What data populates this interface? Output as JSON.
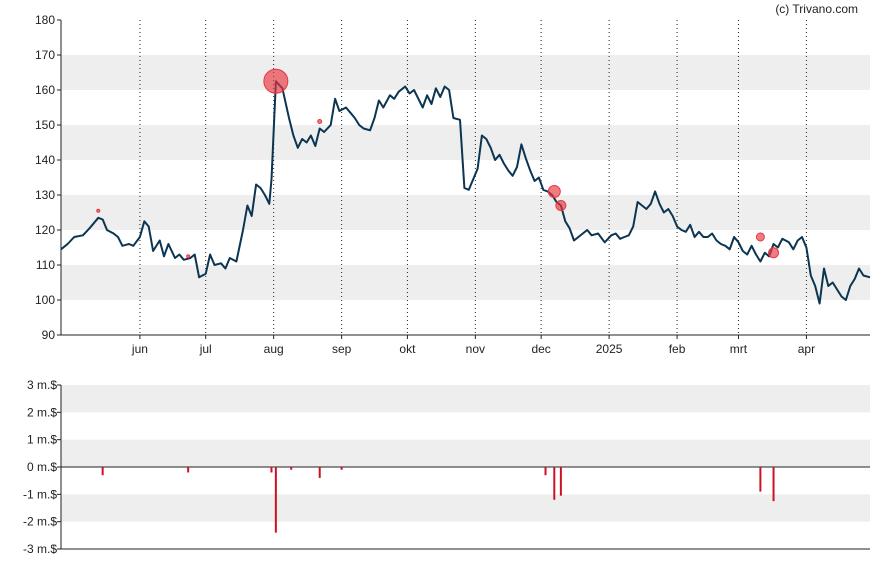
{
  "credit": "(c) Trivano.com",
  "colors": {
    "price_line": "#0b3551",
    "insider_marker": "#e8363f",
    "insider_bar": "#cc1122",
    "band": "#eeeeee",
    "axis": "#222222",
    "month_grid": "#222222"
  },
  "chart_data": [
    {
      "type": "line",
      "ylim": [
        90,
        180
      ],
      "y_ticks": [
        90,
        100,
        110,
        120,
        130,
        140,
        150,
        160,
        170,
        180
      ],
      "y_tick_labels": [
        "90",
        "100",
        "110",
        "120",
        "130",
        "140",
        "150",
        "160",
        "170",
        "180"
      ],
      "x_range": [
        "2024-04-26",
        "2025-04-30"
      ],
      "x_ticks": [
        {
          "label": "jun",
          "date": "2024-06-01"
        },
        {
          "label": "jul",
          "date": "2024-07-01"
        },
        {
          "label": "aug",
          "date": "2024-08-01"
        },
        {
          "label": "sep",
          "date": "2024-09-01"
        },
        {
          "label": "okt",
          "date": "2024-10-01"
        },
        {
          "label": "nov",
          "date": "2024-11-01"
        },
        {
          "label": "dec",
          "date": "2024-12-01"
        },
        {
          "label": "2025",
          "date": "2025-01-01"
        },
        {
          "label": "feb",
          "date": "2025-02-01"
        },
        {
          "label": "mrt",
          "date": "2025-03-01"
        },
        {
          "label": "apr",
          "date": "2025-04-01"
        }
      ],
      "grid": "alternating horizontal bands, dotted vertical month lines",
      "series": [
        {
          "points": [
            [
              "2024-04-26",
              114.5
            ],
            [
              "2024-04-29",
              116.0
            ],
            [
              "2024-05-02",
              118.0
            ],
            [
              "2024-05-06",
              118.5
            ],
            [
              "2024-05-09",
              120.5
            ],
            [
              "2024-05-13",
              123.5
            ],
            [
              "2024-05-15",
              123.0
            ],
            [
              "2024-05-17",
              120.0
            ],
            [
              "2024-05-20",
              119.0
            ],
            [
              "2024-05-22",
              118.0
            ],
            [
              "2024-05-24",
              115.5
            ],
            [
              "2024-05-27",
              116.0
            ],
            [
              "2024-05-29",
              115.5
            ],
            [
              "2024-06-01",
              118.0
            ],
            [
              "2024-06-03",
              122.5
            ],
            [
              "2024-06-05",
              121.0
            ],
            [
              "2024-06-07",
              114.0
            ],
            [
              "2024-06-10",
              117.0
            ],
            [
              "2024-06-12",
              112.5
            ],
            [
              "2024-06-14",
              116.0
            ],
            [
              "2024-06-17",
              112.0
            ],
            [
              "2024-06-19",
              113.0
            ],
            [
              "2024-06-21",
              111.5
            ],
            [
              "2024-06-24",
              112.0
            ],
            [
              "2024-06-26",
              113.0
            ],
            [
              "2024-06-28",
              106.5
            ],
            [
              "2024-07-01",
              107.5
            ],
            [
              "2024-07-03",
              113.0
            ],
            [
              "2024-07-05",
              110.0
            ],
            [
              "2024-07-08",
              110.5
            ],
            [
              "2024-07-10",
              109.0
            ],
            [
              "2024-07-12",
              112.0
            ],
            [
              "2024-07-15",
              111.0
            ],
            [
              "2024-07-18",
              120.0
            ],
            [
              "2024-07-20",
              127.0
            ],
            [
              "2024-07-22",
              124.0
            ],
            [
              "2024-07-24",
              133.0
            ],
            [
              "2024-07-26",
              132.0
            ],
            [
              "2024-07-28",
              130.0
            ],
            [
              "2024-07-30",
              127.5
            ],
            [
              "2024-07-31",
              134.5
            ],
            [
              "2024-08-02",
              162.5
            ],
            [
              "2024-08-05",
              160.5
            ],
            [
              "2024-08-08",
              152.0
            ],
            [
              "2024-08-10",
              147.0
            ],
            [
              "2024-08-12",
              143.5
            ],
            [
              "2024-08-14",
              146.0
            ],
            [
              "2024-08-16",
              145.0
            ],
            [
              "2024-08-18",
              147.0
            ],
            [
              "2024-08-20",
              144.0
            ],
            [
              "2024-08-22",
              149.0
            ],
            [
              "2024-08-24",
              148.0
            ],
            [
              "2024-08-27",
              150.0
            ],
            [
              "2024-08-29",
              157.5
            ],
            [
              "2024-08-31",
              154.0
            ],
            [
              "2024-09-03",
              155.0
            ],
            [
              "2024-09-05",
              153.5
            ],
            [
              "2024-09-07",
              152.0
            ],
            [
              "2024-09-09",
              150.0
            ],
            [
              "2024-09-11",
              149.0
            ],
            [
              "2024-09-14",
              148.5
            ],
            [
              "2024-09-16",
              152.0
            ],
            [
              "2024-09-18",
              157.0
            ],
            [
              "2024-09-20",
              155.0
            ],
            [
              "2024-09-23",
              158.5
            ],
            [
              "2024-09-25",
              157.5
            ],
            [
              "2024-09-27",
              159.5
            ],
            [
              "2024-09-30",
              161.0
            ],
            [
              "2024-10-02",
              159.0
            ],
            [
              "2024-10-04",
              160.0
            ],
            [
              "2024-10-06",
              157.5
            ],
            [
              "2024-10-08",
              155.0
            ],
            [
              "2024-10-10",
              158.5
            ],
            [
              "2024-10-12",
              156.0
            ],
            [
              "2024-10-14",
              160.5
            ],
            [
              "2024-10-16",
              158.0
            ],
            [
              "2024-10-18",
              161.0
            ],
            [
              "2024-10-20",
              160.0
            ],
            [
              "2024-10-22",
              152.0
            ],
            [
              "2024-10-25",
              151.5
            ],
            [
              "2024-10-27",
              132.0
            ],
            [
              "2024-10-29",
              131.5
            ],
            [
              "2024-10-31",
              134.5
            ],
            [
              "2024-11-02",
              137.5
            ],
            [
              "2024-11-04",
              147.0
            ],
            [
              "2024-11-06",
              146.0
            ],
            [
              "2024-11-08",
              143.5
            ],
            [
              "2024-11-10",
              140.0
            ],
            [
              "2024-11-12",
              141.5
            ],
            [
              "2024-11-14",
              139.0
            ],
            [
              "2024-11-16",
              137.0
            ],
            [
              "2024-11-18",
              135.5
            ],
            [
              "2024-11-20",
              138.0
            ],
            [
              "2024-11-22",
              144.5
            ],
            [
              "2024-11-24",
              140.5
            ],
            [
              "2024-11-26",
              137.0
            ],
            [
              "2024-11-28",
              134.0
            ],
            [
              "2024-11-30",
              135.0
            ],
            [
              "2024-12-02",
              131.5
            ],
            [
              "2024-12-04",
              131.0
            ],
            [
              "2024-12-06",
              130.0
            ],
            [
              "2024-12-08",
              128.0
            ],
            [
              "2024-12-10",
              127.0
            ],
            [
              "2024-12-12",
              122.5
            ],
            [
              "2024-12-14",
              120.5
            ],
            [
              "2024-12-16",
              117.0
            ],
            [
              "2024-12-18",
              118.0
            ],
            [
              "2024-12-20",
              119.0
            ],
            [
              "2024-12-22",
              120.0
            ],
            [
              "2024-12-24",
              118.5
            ],
            [
              "2024-12-27",
              119.0
            ],
            [
              "2024-12-30",
              116.5
            ],
            [
              "2025-01-02",
              118.5
            ],
            [
              "2025-01-04",
              119.0
            ],
            [
              "2025-01-06",
              117.5
            ],
            [
              "2025-01-08",
              118.0
            ],
            [
              "2025-01-10",
              118.5
            ],
            [
              "2025-01-12",
              121.0
            ],
            [
              "2025-01-14",
              128.0
            ],
            [
              "2025-01-16",
              127.0
            ],
            [
              "2025-01-18",
              126.0
            ],
            [
              "2025-01-20",
              127.5
            ],
            [
              "2025-01-22",
              131.0
            ],
            [
              "2025-01-24",
              127.5
            ],
            [
              "2025-01-26",
              125.0
            ],
            [
              "2025-01-28",
              126.0
            ],
            [
              "2025-01-30",
              124.0
            ],
            [
              "2025-02-01",
              121.0
            ],
            [
              "2025-02-03",
              120.0
            ],
            [
              "2025-02-05",
              119.5
            ],
            [
              "2025-02-07",
              121.5
            ],
            [
              "2025-02-09",
              118.0
            ],
            [
              "2025-02-11",
              119.5
            ],
            [
              "2025-02-13",
              118.0
            ],
            [
              "2025-02-15",
              118.0
            ],
            [
              "2025-02-17",
              119.0
            ],
            [
              "2025-02-19",
              117.0
            ],
            [
              "2025-02-21",
              116.0
            ],
            [
              "2025-02-23",
              115.5
            ],
            [
              "2025-02-25",
              114.5
            ],
            [
              "2025-02-27",
              118.0
            ],
            [
              "2025-03-01",
              116.5
            ],
            [
              "2025-03-03",
              114.0
            ],
            [
              "2025-03-05",
              113.0
            ],
            [
              "2025-03-07",
              115.5
            ],
            [
              "2025-03-09",
              113.0
            ],
            [
              "2025-03-11",
              111.0
            ],
            [
              "2025-03-13",
              113.5
            ],
            [
              "2025-03-15",
              112.5
            ],
            [
              "2025-03-17",
              116.0
            ],
            [
              "2025-03-19",
              115.0
            ],
            [
              "2025-03-21",
              117.5
            ],
            [
              "2025-03-24",
              116.5
            ],
            [
              "2025-03-26",
              114.5
            ],
            [
              "2025-03-28",
              117.0
            ],
            [
              "2025-03-30",
              118.0
            ],
            [
              "2025-04-01",
              115.0
            ],
            [
              "2025-04-03",
              107.0
            ],
            [
              "2025-04-05",
              104.0
            ],
            [
              "2025-04-07",
              99.0
            ],
            [
              "2025-04-09",
              109.0
            ],
            [
              "2025-04-11",
              104.0
            ],
            [
              "2025-04-13",
              105.0
            ],
            [
              "2025-04-15",
              103.0
            ],
            [
              "2025-04-17",
              101.0
            ],
            [
              "2025-04-19",
              100.0
            ],
            [
              "2025-04-21",
              104.0
            ],
            [
              "2025-04-23",
              106.0
            ],
            [
              "2025-04-25",
              109.0
            ],
            [
              "2025-04-27",
              107.0
            ],
            [
              "2025-04-30",
              106.5
            ]
          ]
        }
      ],
      "insider_markers": [
        {
          "date": "2024-05-13",
          "price": 125.5,
          "size": 1
        },
        {
          "date": "2024-06-23",
          "price": 112.5,
          "size": 1
        },
        {
          "date": "2024-08-02",
          "price": 162.5,
          "size": 12
        },
        {
          "date": "2024-08-22",
          "price": 151.0,
          "size": 2
        },
        {
          "date": "2024-12-07",
          "price": 131.0,
          "size": 6
        },
        {
          "date": "2024-12-10",
          "price": 127.0,
          "size": 5
        },
        {
          "date": "2025-03-11",
          "price": 118.0,
          "size": 4
        },
        {
          "date": "2025-03-17",
          "price": 113.5,
          "size": 5
        }
      ]
    },
    {
      "type": "bar",
      "ylim": [
        -3,
        3
      ],
      "y_ticks": [
        3,
        2,
        1,
        0,
        -1,
        -2,
        -3
      ],
      "y_tick_labels": [
        "3 m.$",
        "2 m.$",
        "1 m.$",
        "0 m.$",
        "-1 m.$",
        "-2 m.$",
        "-3 m.$"
      ],
      "grid": "alternating horizontal bands, zero line",
      "bars": [
        {
          "date": "2024-05-15",
          "value": -0.3
        },
        {
          "date": "2024-06-23",
          "value": -0.2
        },
        {
          "date": "2024-07-31",
          "value": -0.2
        },
        {
          "date": "2024-08-02",
          "value": -2.4
        },
        {
          "date": "2024-08-09",
          "value": -0.1
        },
        {
          "date": "2024-08-22",
          "value": -0.4
        },
        {
          "date": "2024-09-01",
          "value": -0.1
        },
        {
          "date": "2024-12-03",
          "value": -0.3
        },
        {
          "date": "2024-12-07",
          "value": -1.2
        },
        {
          "date": "2024-12-10",
          "value": -1.05
        },
        {
          "date": "2025-03-11",
          "value": -0.9
        },
        {
          "date": "2025-03-17",
          "value": -1.25
        }
      ]
    }
  ]
}
